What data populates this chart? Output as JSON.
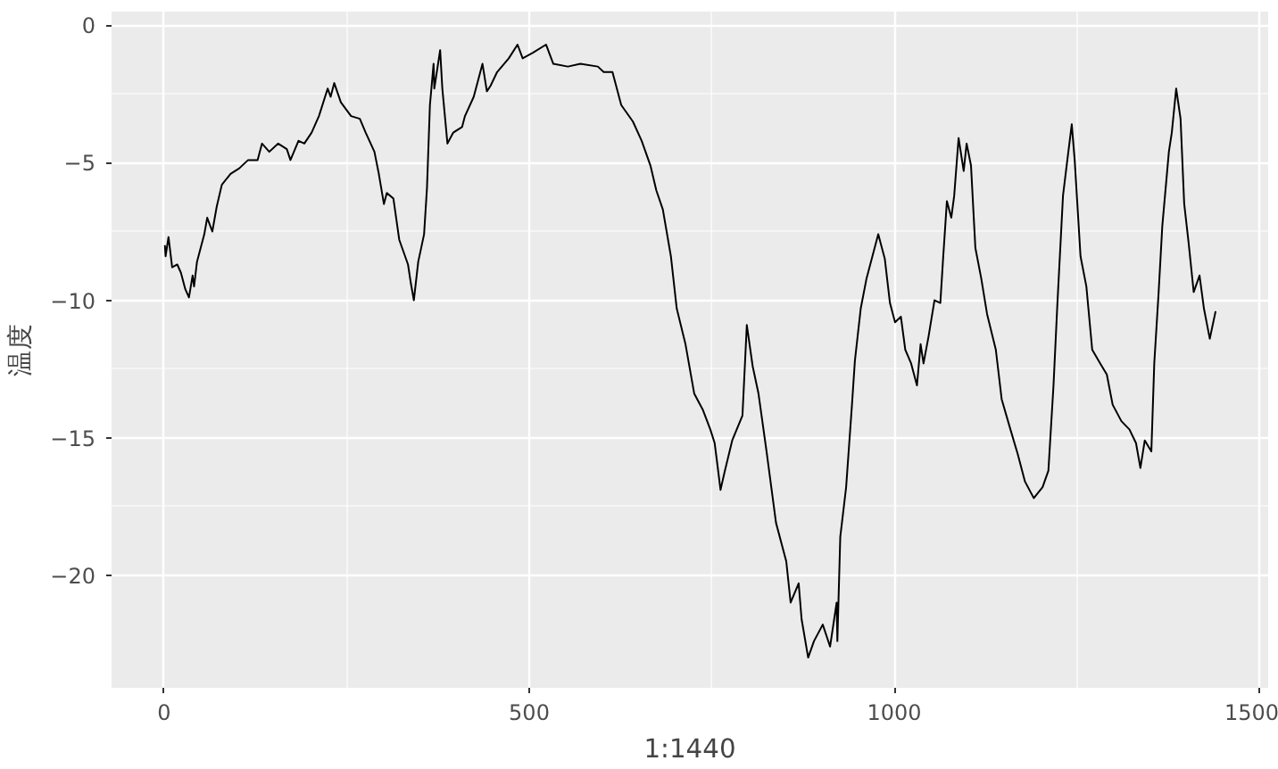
{
  "chart_data": {
    "type": "line",
    "xlabel": "1:1440",
    "ylabel": "温度",
    "x": [
      1,
      2,
      6,
      11,
      18,
      23,
      29,
      34,
      39,
      41,
      45,
      55,
      59,
      66,
      72,
      79,
      91,
      103,
      115,
      128,
      134,
      144,
      156,
      168,
      173,
      184,
      192,
      202,
      212,
      224,
      228,
      233,
      242,
      256,
      268,
      276,
      288,
      294,
      301,
      305,
      314,
      322,
      326,
      334,
      338,
      342,
      348,
      356,
      360,
      364,
      369,
      370,
      378,
      381,
      388,
      396,
      408,
      412,
      424,
      436,
      442,
      447,
      456,
      472,
      484,
      491,
      505,
      523,
      533,
      553,
      570,
      594,
      602,
      614,
      626,
      642,
      654,
      666,
      674,
      683,
      694,
      702,
      714,
      726,
      738,
      748,
      754,
      762,
      768,
      778,
      792,
      798,
      806,
      814,
      825,
      838,
      852,
      858,
      869,
      873,
      882,
      890,
      902,
      912,
      921,
      922,
      926,
      934,
      942,
      946,
      954,
      962,
      970,
      978,
      987,
      994,
      1001,
      1009,
      1015,
      1023,
      1031,
      1036,
      1040,
      1047,
      1055,
      1063,
      1067,
      1072,
      1078,
      1082,
      1088,
      1095,
      1099,
      1105,
      1111,
      1119,
      1127,
      1139,
      1147,
      1159,
      1169,
      1179,
      1191,
      1203,
      1211,
      1218,
      1223,
      1231,
      1236,
      1243,
      1247,
      1255,
      1263,
      1271,
      1282,
      1291,
      1299,
      1311,
      1322,
      1331,
      1337,
      1343,
      1352,
      1356,
      1362,
      1367,
      1376,
      1380,
      1386,
      1392,
      1397,
      1403,
      1410,
      1418,
      1424,
      1432,
      1440
    ],
    "series": [
      {
        "color": "#000000",
        "values": [
          -8.0,
          -8.4,
          -7.7,
          -8.8,
          -8.7,
          -9.0,
          -9.6,
          -9.9,
          -9.1,
          -9.5,
          -8.6,
          -7.6,
          -7.0,
          -7.5,
          -6.6,
          -5.8,
          -5.4,
          -5.2,
          -4.9,
          -4.9,
          -4.3,
          -4.6,
          -4.3,
          -4.5,
          -4.9,
          -4.2,
          -4.3,
          -3.9,
          -3.3,
          -2.3,
          -2.6,
          -2.1,
          -2.8,
          -3.3,
          -3.4,
          -3.9,
          -4.6,
          -5.4,
          -6.5,
          -6.1,
          -6.3,
          -7.8,
          -8.1,
          -8.7,
          -9.4,
          -10.0,
          -8.6,
          -7.6,
          -5.9,
          -2.9,
          -1.4,
          -2.3,
          -0.9,
          -2.3,
          -4.3,
          -3.9,
          -3.7,
          -3.3,
          -2.6,
          -1.4,
          -2.4,
          -2.2,
          -1.7,
          -1.2,
          -0.7,
          -1.2,
          -1.0,
          -0.7,
          -1.4,
          -1.5,
          -1.4,
          -1.5,
          -1.7,
          -1.7,
          -2.9,
          -3.5,
          -4.2,
          -5.1,
          -6.0,
          -6.7,
          -8.4,
          -10.3,
          -11.6,
          -13.4,
          -14.0,
          -14.7,
          -15.2,
          -16.9,
          -16.2,
          -15.1,
          -14.2,
          -10.9,
          -12.4,
          -13.4,
          -15.5,
          -18.1,
          -19.5,
          -21.0,
          -20.3,
          -21.6,
          -23.0,
          -22.4,
          -21.8,
          -22.6,
          -21.0,
          -22.4,
          -18.6,
          -16.8,
          -13.8,
          -12.2,
          -10.3,
          -9.2,
          -8.4,
          -7.6,
          -8.5,
          -10.1,
          -10.8,
          -10.6,
          -11.8,
          -12.3,
          -13.1,
          -11.6,
          -12.3,
          -11.3,
          -10.0,
          -10.1,
          -8.4,
          -6.4,
          -7.0,
          -6.2,
          -4.1,
          -5.3,
          -4.3,
          -5.1,
          -8.1,
          -9.2,
          -10.5,
          -11.8,
          -13.6,
          -14.7,
          -15.6,
          -16.6,
          -17.2,
          -16.8,
          -16.2,
          -13.1,
          -10.3,
          -6.2,
          -5.1,
          -3.6,
          -4.9,
          -8.4,
          -9.5,
          -11.8,
          -12.3,
          -12.7,
          -13.8,
          -14.4,
          -14.7,
          -15.2,
          -16.1,
          -15.1,
          -15.5,
          -12.3,
          -9.7,
          -7.3,
          -4.6,
          -3.9,
          -2.3,
          -3.4,
          -6.5,
          -7.9,
          -9.7,
          -9.1,
          -10.3,
          -11.4,
          -10.4
        ]
      }
    ],
    "xlim": [
      -72,
      1512
    ],
    "ylim": [
      -24.1,
      0.5
    ],
    "xticks": [
      0,
      500,
      1000,
      1500
    ],
    "yticks": [
      -20,
      -15,
      -10,
      -5,
      0
    ],
    "grid": true
  }
}
